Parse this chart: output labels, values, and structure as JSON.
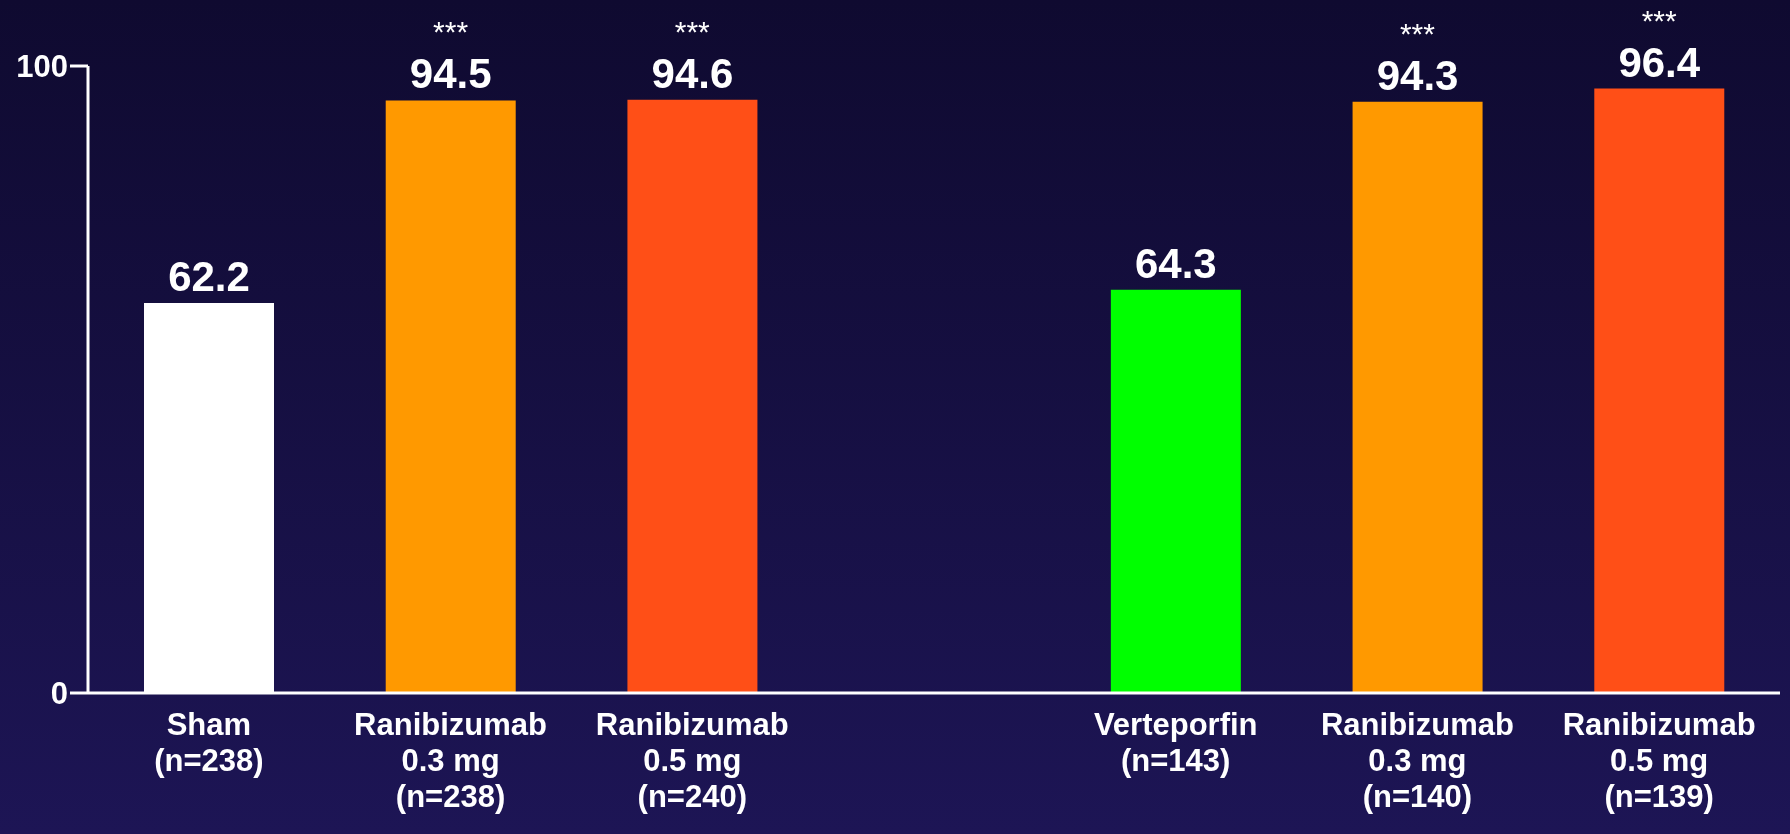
{
  "chart_data": {
    "type": "bar",
    "categories": [
      "Sham\n(n=238)",
      "Ranibizumab\n0.3 mg\n(n=238)",
      "Ranibizumab\n0.5 mg\n(n=240)",
      null,
      "Verteporfin\n(n=143)",
      "Ranibizumab\n0.3 mg\n(n=140)",
      "Ranibizumab\n0.5 mg\n(n=139)"
    ],
    "values": [
      62.2,
      94.5,
      94.6,
      null,
      64.3,
      94.3,
      96.4
    ],
    "colors": [
      "#ffffff",
      "#ff9900",
      "#ff4f17",
      null,
      "#00ff00",
      "#ff9900",
      "#ff4f17"
    ],
    "ylim": [
      0,
      100
    ],
    "yticks": [
      0,
      100
    ],
    "grid": false,
    "legend": false,
    "data_labels": true,
    "annotations": [
      {
        "text": "***",
        "x": "Ranibizumab\n0.3 mg\n(n=238)",
        "y": 94.5
      },
      {
        "text": "***",
        "x": "Ranibizumab\n0.5 mg\n(n=240)",
        "y": 94.6
      },
      {
        "text": "***",
        "x": "Ranibizumab\n0.3 mg\n(n=140)",
        "y": 94.3
      },
      {
        "text": "***",
        "x": "Ranibizumab\n0.5 mg\n(n=139)",
        "y": 96.4
      }
    ]
  }
}
